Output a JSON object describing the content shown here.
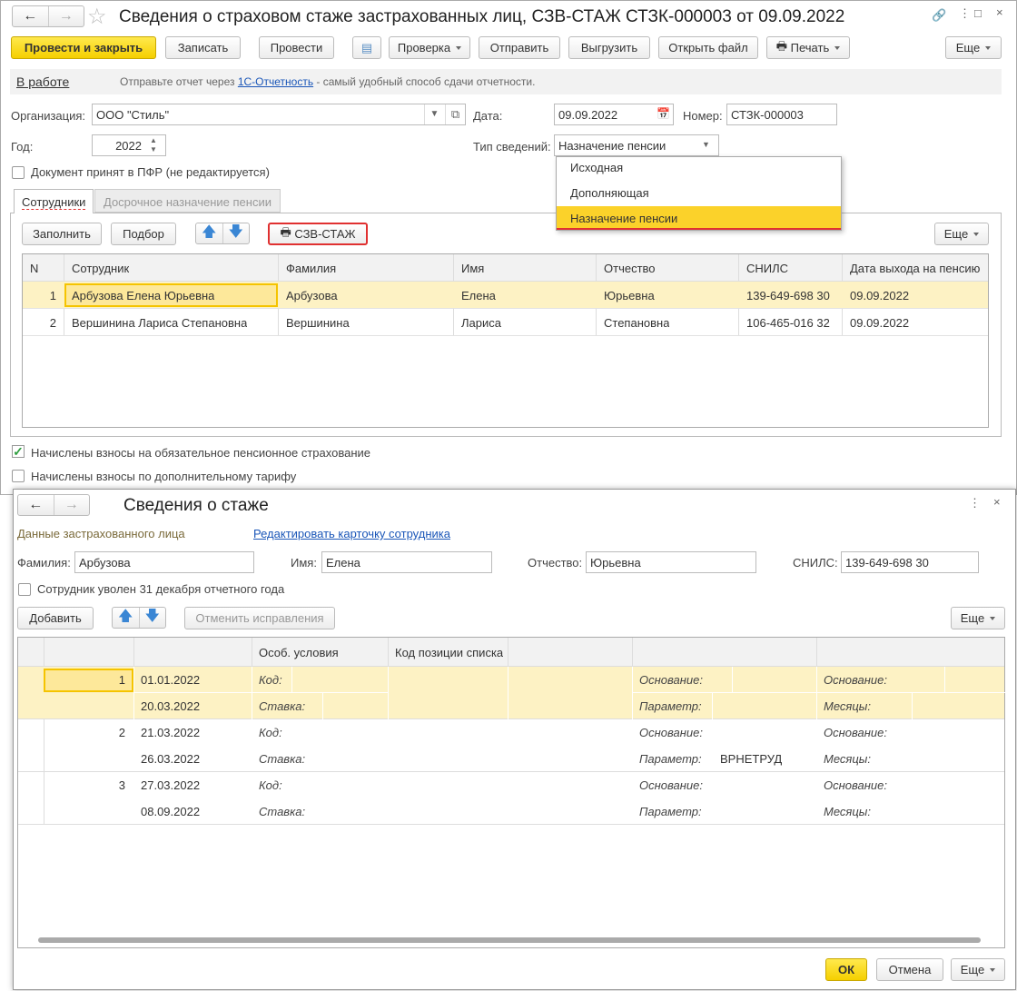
{
  "main": {
    "title": "Сведения о страховом стаже застрахованных лиц, СЗВ-СТАЖ СТЗК-000003 от 09.09.2022",
    "toolbar": {
      "post_close": "Провести и закрыть",
      "save": "Записать",
      "post": "Провести",
      "check": "Проверка",
      "send": "Отправить",
      "export": "Выгрузить",
      "open_file": "Открыть файл",
      "print": "Печать",
      "more": "Еще"
    },
    "status": {
      "state": "В работе",
      "text_before": "Отправьте отчет через ",
      "link": "1С-Отчетность",
      "text_after": " - самый удобный способ сдачи отчетности."
    },
    "fields": {
      "org_label": "Организация:",
      "org_value": "ООО \"Стиль\"",
      "date_label": "Дата:",
      "date_value": "09.09.2022",
      "number_label": "Номер:",
      "number_value": "СТЗК-000003",
      "year_label": "Год:",
      "year_value": "2022",
      "type_label": "Тип сведений:",
      "type_value": "Назначение пенсии"
    },
    "type_options": [
      "Исходная",
      "Дополняющая",
      "Назначение пенсии"
    ],
    "accepted_label": "Документ принят в ПФР (не редактируется)",
    "tabs": [
      "Сотрудники",
      "Досрочное назначение пенсии"
    ],
    "tab_toolbar": {
      "fill": "Заполнить",
      "pick": "Подбор",
      "szv": "СЗВ-СТАЖ",
      "more": "Еще"
    },
    "columns": [
      "N",
      "Сотрудник",
      "Фамилия",
      "Имя",
      "Отчество",
      "СНИЛС",
      "Дата выхода на пенсию"
    ],
    "rows": [
      [
        "1",
        "Арбузова Елена Юрьевна",
        "Арбузова",
        "Елена",
        "Юрьевна",
        "139-649-698 30",
        "09.09.2022"
      ],
      [
        "2",
        "Вершинина Лариса Степановна",
        "Вершинина",
        "Лариса",
        "Степановна",
        "106-465-016 32",
        "09.09.2022"
      ]
    ],
    "checks": [
      {
        "label": "Начислены взносы на обязательное пенсионное страхование",
        "checked": true
      },
      {
        "label": "Начислены взносы по дополнительному тарифу",
        "checked": false
      }
    ]
  },
  "dialog": {
    "title": "Сведения о стаже",
    "section": "Данные застрахованного лица",
    "edit_link": "Редактировать карточку сотрудника",
    "fields": {
      "last_label": "Фамилия:",
      "last_value": "Арбузова",
      "first_label": "Имя:",
      "first_value": "Елена",
      "middle_label": "Отчество:",
      "middle_value": "Юрьевна",
      "snils_label": "СНИЛС:",
      "snils_value": "139-649-698 30"
    },
    "fired_label": "Сотрудник уволен 31 декабря отчетного года",
    "toolbar": {
      "add": "Добавить",
      "undo": "Отменить исправления",
      "more": "Еще"
    },
    "columns": [
      "",
      "",
      "",
      "Особ. условия",
      "Код позиции списка",
      "",
      ""
    ],
    "labels": {
      "code": "Код:",
      "rate": "Ставка:",
      "basis": "Основание:",
      "param": "Параметр:",
      "months": "Месяцы:"
    },
    "rows": [
      {
        "n": "1",
        "from": "01.01.2022",
        "to": "20.03.2022",
        "param": ""
      },
      {
        "n": "2",
        "from": "21.03.2022",
        "to": "26.03.2022",
        "param": "ВРНЕТРУД"
      },
      {
        "n": "3",
        "from": "27.03.2022",
        "to": "08.09.2022",
        "param": ""
      }
    ],
    "ok": "ОК",
    "cancel": "Отмена",
    "more": "Еще"
  },
  "colors": {
    "accent_yellow": "#f5cf00",
    "selected_row": "#fdf2c4",
    "link": "#1a56b8",
    "highlight_red": "#e03030"
  }
}
